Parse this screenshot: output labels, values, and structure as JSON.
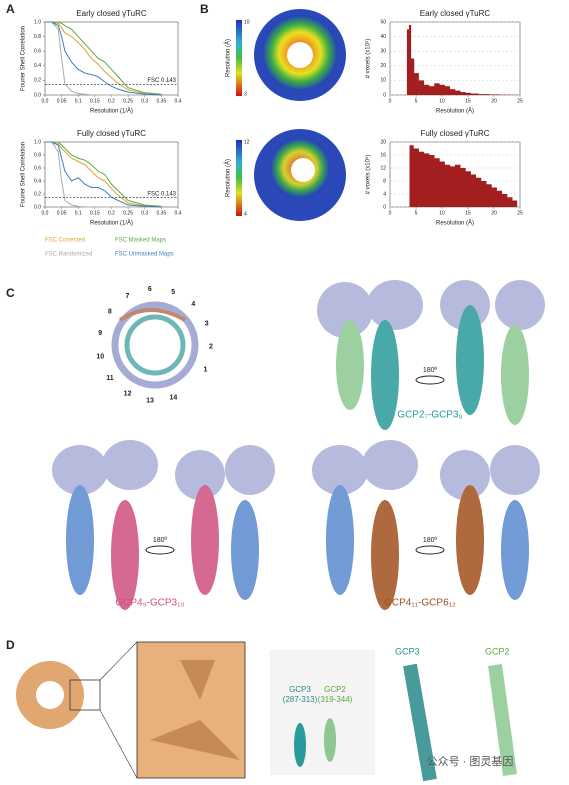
{
  "panel_labels": [
    "A",
    "B",
    "C",
    "D"
  ],
  "chart_data": [
    {
      "type": "line",
      "title": "Early closed γTuRC",
      "x_label": "Resolution (1/Å)",
      "y_label": "Fourier Shell Correlation",
      "x": [
        0,
        0.02,
        0.04,
        0.05,
        0.06,
        0.08,
        0.1,
        0.12,
        0.14,
        0.16,
        0.18,
        0.2,
        0.22,
        0.25,
        0.3,
        0.35
      ],
      "series": [
        {
          "name": "FSC Corrected",
          "color": "#e0a030",
          "values": [
            1,
            1,
            0.98,
            0.92,
            0.85,
            0.8,
            0.72,
            0.62,
            0.5,
            0.42,
            0.32,
            0.24,
            0.16,
            0.07,
            0.02,
            0
          ]
        },
        {
          "name": "FSC Masked Maps",
          "color": "#5aaa3c",
          "values": [
            1,
            1,
            1,
            0.98,
            0.95,
            0.9,
            0.8,
            0.7,
            0.6,
            0.5,
            0.45,
            0.35,
            0.25,
            0.1,
            0.03,
            0.01
          ]
        },
        {
          "name": "FSC Randomized",
          "color": "#aaaaaa",
          "values": [
            1,
            1,
            0.9,
            0.5,
            0.15,
            0.05,
            0.02,
            0.01,
            0,
            0,
            0,
            0,
            0,
            0,
            0,
            0
          ]
        },
        {
          "name": "FSC Unmasked Maps",
          "color": "#3a7ec4",
          "values": [
            1,
            1,
            0.95,
            0.8,
            0.6,
            0.45,
            0.35,
            0.3,
            0.28,
            0.25,
            0.18,
            0.12,
            0.08,
            0.04,
            0.01,
            0
          ]
        }
      ],
      "xlim": [
        0,
        0.4
      ],
      "ylim": [
        0,
        1
      ],
      "xticks": [
        {
          "value": 0,
          "label": "0.0"
        },
        0.05,
        {
          "value": 0.1,
          "label": "0.1"
        },
        0.15,
        {
          "value": 0.2,
          "label": "0.2"
        },
        0.25,
        {
          "value": 0.3,
          "label": "0.3"
        },
        0.35,
        {
          "value": 0.4,
          "label": "0.4"
        }
      ],
      "yticks": [
        {
          "value": 0,
          "label": "0.0"
        },
        0.2,
        0.4,
        0.6,
        0.8,
        {
          "value": 1,
          "label": "1.0"
        }
      ],
      "threshold": 0.143,
      "annotation": "FSC 0.143",
      "grid": false
    },
    {
      "type": "line",
      "title": "Fully closed γTuRC",
      "x_label": "Resolution (1/Å)",
      "y_label": "Fourier Shell Correlation",
      "x": [
        0,
        0.02,
        0.04,
        0.05,
        0.06,
        0.08,
        0.1,
        0.12,
        0.14,
        0.16,
        0.18,
        0.2,
        0.22,
        0.25,
        0.3,
        0.35
      ],
      "series": [
        {
          "color": "#e0a030",
          "values": [
            1,
            1,
            0.97,
            0.9,
            0.85,
            0.75,
            0.7,
            0.65,
            0.55,
            0.45,
            0.4,
            0.28,
            0.18,
            0.06,
            0.02,
            0
          ]
        },
        {
          "color": "#5aaa3c",
          "values": [
            1,
            1,
            1,
            0.95,
            0.9,
            0.8,
            0.75,
            0.72,
            0.65,
            0.55,
            0.5,
            0.35,
            0.25,
            0.1,
            0.03,
            0.01
          ]
        },
        {
          "color": "#aaaaaa",
          "values": [
            1,
            1,
            0.85,
            0.4,
            0.1,
            0.03,
            0.01,
            0,
            0,
            0,
            0,
            0,
            0,
            0,
            0,
            0
          ]
        },
        {
          "color": "#3a7ec4",
          "values": [
            1,
            1,
            0.95,
            0.75,
            0.55,
            0.4,
            0.45,
            0.35,
            0.3,
            0.3,
            0.25,
            0.15,
            0.1,
            0.03,
            0.01,
            0
          ]
        }
      ],
      "xlim": [
        0,
        0.4
      ],
      "ylim": [
        0,
        1
      ],
      "xticks": [
        {
          "value": 0,
          "label": "0.0"
        },
        0.05,
        {
          "value": 0.1,
          "label": "0.1"
        },
        0.15,
        {
          "value": 0.2,
          "label": "0.2"
        },
        0.25,
        {
          "value": 0.3,
          "label": "0.3"
        },
        0.35,
        {
          "value": 0.4,
          "label": "0.4"
        }
      ],
      "yticks": [
        {
          "value": 0,
          "label": "0.0"
        },
        0.2,
        0.4,
        0.6,
        0.8,
        {
          "value": 1,
          "label": "1.0"
        }
      ],
      "threshold": 0.143,
      "annotation": "FSC 0.143",
      "grid": false
    },
    {
      "type": "area",
      "title": "Early closed γTuRC",
      "x_label": "Resolution (Å)",
      "y_label": "# voxels (x10⁵)",
      "color": "#a31f1f",
      "x": [
        3,
        3.5,
        3.8,
        4.2,
        5,
        6,
        7,
        8,
        9,
        10,
        11,
        12,
        13,
        14,
        15,
        16,
        18,
        20,
        22,
        24,
        25
      ],
      "values": [
        0,
        45,
        48,
        25,
        15,
        10,
        7,
        6,
        8,
        7,
        6,
        4,
        3,
        2,
        1.5,
        1,
        0.6,
        0.4,
        0.2,
        0.1,
        0
      ],
      "xlim": [
        0,
        25
      ],
      "ylim": [
        0,
        50
      ],
      "xticks": [
        0,
        5,
        10,
        15,
        20,
        25
      ],
      "yticks": [
        0,
        10,
        20,
        30,
        40,
        50
      ],
      "grid": true
    },
    {
      "type": "area",
      "title": "Fully closed γTuRC",
      "x_label": "Resolution (Å)",
      "y_label": "# voxels (x10⁵)",
      "color": "#a31f1f",
      "x": [
        3.5,
        4,
        5,
        6,
        7,
        8,
        9,
        10,
        11,
        12,
        13,
        14,
        15,
        16,
        17,
        18,
        19,
        20,
        21,
        22,
        23,
        24,
        24.8
      ],
      "values": [
        0,
        19,
        18,
        17,
        16.5,
        16,
        15,
        14,
        13,
        12.5,
        13,
        12,
        11,
        10,
        9,
        8,
        7,
        6,
        5,
        4,
        3,
        2,
        0
      ],
      "xlim": [
        0,
        25
      ],
      "ylim": [
        0,
        20
      ],
      "xticks": [
        0,
        5,
        10,
        15,
        20,
        25
      ],
      "yticks": [
        0,
        4,
        8,
        12,
        16,
        20
      ],
      "grid": true
    }
  ],
  "colorbars": [
    {
      "label": "Resolution (Å)",
      "ticks": [
        10,
        3
      ]
    },
    {
      "label": "Resolution (Å)",
      "ticks": [
        12,
        4
      ]
    }
  ],
  "panel_c": {
    "ring_numbers": [
      "1",
      "2",
      "3",
      "4",
      "5",
      "6",
      "7",
      "8",
      "9",
      "10",
      "11",
      "12",
      "13",
      "14"
    ],
    "rotation": "180º",
    "pairs": [
      "GCP2₇-GCP3₈",
      "GCP4₉-GCP3₁₀",
      "GCP4₁₁-GCP6₁₂"
    ]
  },
  "panel_d": {
    "helix_labels": [
      "GCP3\n(287-313)",
      "GCP2\n(319-344)"
    ],
    "titles": [
      "GCP3",
      "GCP2"
    ]
  },
  "watermark": "公众号 · 图灵基因"
}
